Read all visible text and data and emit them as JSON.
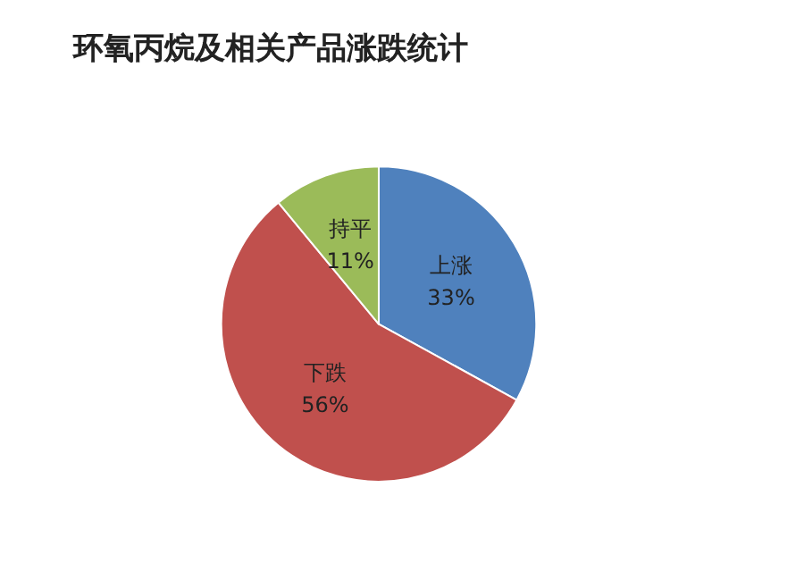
{
  "chart_data": {
    "type": "pie",
    "title": "环氧丙烷及相关产品涨跌统计",
    "categories": [
      "上涨",
      "下跌",
      "持平"
    ],
    "values": [
      33,
      56,
      11
    ],
    "value_labels": [
      "33%",
      "56%",
      "11%"
    ],
    "colors": [
      "#4f81bd",
      "#c0504d",
      "#9bbb59"
    ]
  }
}
